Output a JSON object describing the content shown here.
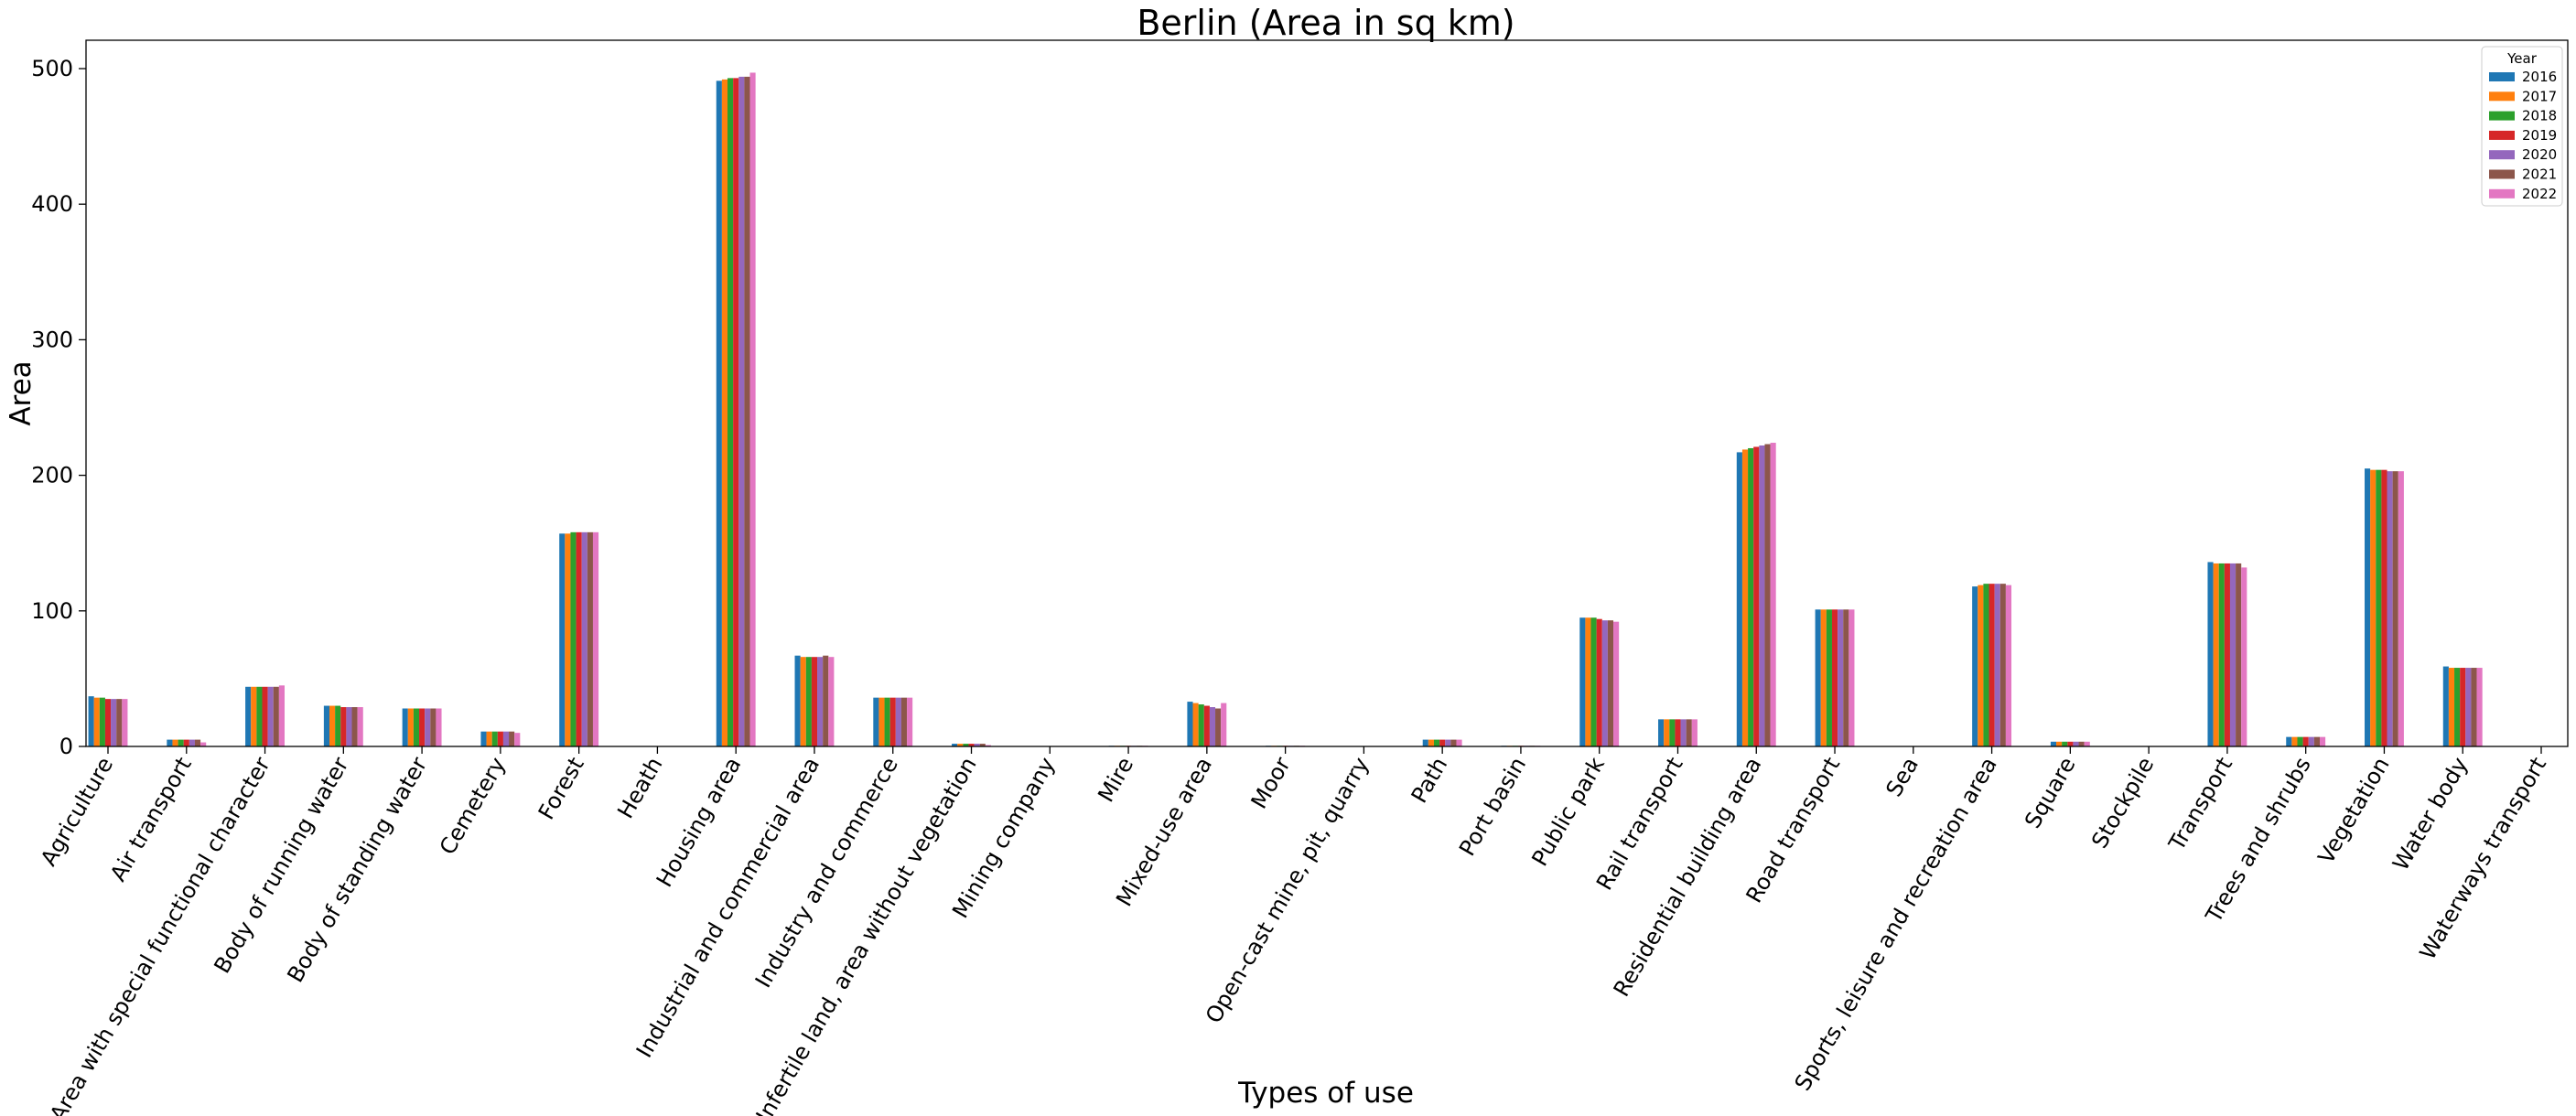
{
  "chart_data": {
    "type": "bar",
    "title": "Berlin (Area in sq km)",
    "xlabel": "Types of use",
    "ylabel": "Area",
    "ylim": [
      0,
      525
    ],
    "yticks": [
      0,
      100,
      200,
      300,
      400,
      500
    ],
    "grid": false,
    "legend": {
      "title": "Year",
      "placement": "top-right"
    },
    "categories": [
      "Agriculture",
      "Air transport",
      "Area with special functional character",
      "Body of running water",
      "Body of standing water",
      "Cemetery",
      "Forest",
      "Heath",
      "Housing area",
      "Industrial and commercial area",
      "Industry and commerce",
      "Infertile land, area without vegetation",
      "Mining company",
      "Mire",
      "Mixed-use area",
      "Moor",
      "Open-cast mine, pit, quarry",
      "Path",
      "Port basin",
      "Public park",
      "Rail transport",
      "Residential building area",
      "Road transport",
      "Sea",
      "Sports, leisure and recreation area",
      "Square",
      "Stockpile",
      "Transport",
      "Trees and shrubs",
      "Vegetation",
      "Water body",
      "Waterways transport"
    ],
    "series": [
      {
        "name": "2016",
        "color": "#1f77b4",
        "values": [
          37,
          5,
          44,
          30,
          28,
          11,
          157,
          0,
          491,
          67,
          36,
          2,
          0,
          0.5,
          33,
          0.5,
          0,
          5,
          0.5,
          95,
          20,
          217,
          101,
          0,
          118,
          3.5,
          0,
          136,
          7,
          205,
          59,
          0
        ]
      },
      {
        "name": "2017",
        "color": "#ff7f0e",
        "values": [
          36,
          5,
          44,
          30,
          28,
          11,
          157,
          0,
          492,
          66,
          36,
          2,
          0,
          0.5,
          32,
          0.5,
          0,
          5,
          0.5,
          95,
          20,
          219,
          101,
          0,
          119,
          3.5,
          0,
          135,
          7,
          204,
          58,
          0
        ]
      },
      {
        "name": "2018",
        "color": "#2ca02c",
        "values": [
          36,
          5,
          44,
          30,
          28,
          11,
          158,
          0,
          493,
          66,
          36,
          2,
          0,
          0.5,
          31,
          0.5,
          0,
          5,
          0.5,
          95,
          20,
          220,
          101,
          0,
          120,
          3.5,
          0,
          135,
          7,
          204,
          58,
          0
        ]
      },
      {
        "name": "2019",
        "color": "#d62728",
        "values": [
          35,
          5,
          44,
          29,
          28,
          11,
          158,
          0,
          493,
          66,
          36,
          2,
          0,
          0.5,
          30,
          0.5,
          0,
          5,
          0.5,
          94,
          20,
          221,
          101,
          0,
          120,
          3.5,
          0,
          135,
          7,
          204,
          58,
          0
        ]
      },
      {
        "name": "2020",
        "color": "#9467bd",
        "values": [
          35,
          5,
          44,
          29,
          28,
          11,
          158,
          0,
          494,
          66,
          36,
          2,
          0,
          0.5,
          29,
          0.5,
          0,
          5,
          0.5,
          93,
          20,
          222,
          101,
          0,
          120,
          3.5,
          0,
          135,
          7,
          203,
          58,
          0
        ]
      },
      {
        "name": "2021",
        "color": "#8c564b",
        "values": [
          35,
          5,
          44,
          29,
          28,
          11,
          158,
          0,
          494,
          67,
          36,
          2,
          0,
          0.5,
          28,
          0.5,
          0,
          5,
          0.5,
          93,
          20,
          223,
          101,
          0,
          120,
          3.5,
          0,
          135,
          7,
          203,
          58,
          0
        ]
      },
      {
        "name": "2022",
        "color": "#e377c2",
        "values": [
          35,
          3,
          45,
          29,
          28,
          10,
          158,
          0,
          497,
          66,
          36,
          1,
          0,
          0.5,
          32,
          0.5,
          0,
          5,
          0.5,
          92,
          20,
          224,
          101,
          0,
          119,
          3.5,
          0,
          132,
          7,
          203,
          58,
          0
        ]
      }
    ]
  }
}
